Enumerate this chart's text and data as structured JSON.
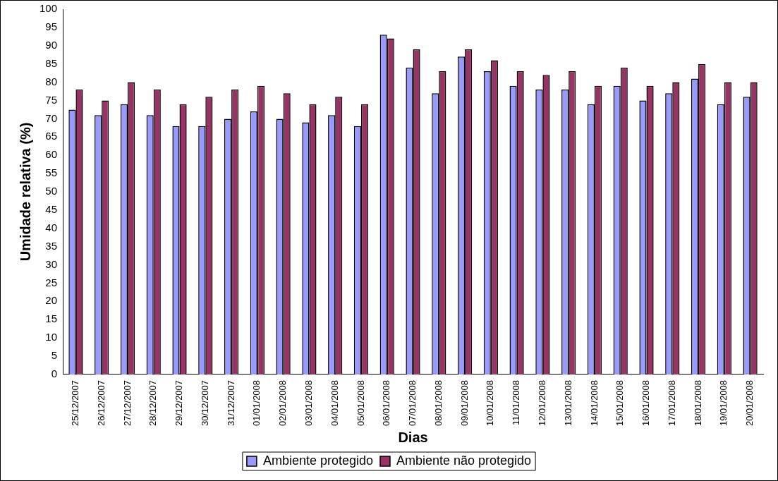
{
  "chart_data": {
    "type": "bar",
    "xlabel": "Dias",
    "ylabel": "Umidade relativa (%)",
    "categories": [
      "25/12/2007",
      "26/12/2007",
      "27/12/2007",
      "28/12/2007",
      "29/12/2007",
      "30/12/2007",
      "31/12/2007",
      "01/01/2008",
      "02/01/2008",
      "03/01/2008",
      "04/01/2008",
      "05/01/2008",
      "06/01/2008",
      "07/01/2008",
      "08/01/2008",
      "09/01/2008",
      "10/01/2008",
      "11/01/2008",
      "12/01/2008",
      "13/01/2008",
      "14/01/2008",
      "15/01/2008",
      "16/01/2008",
      "17/01/2008",
      "18/01/2008",
      "19/01/2008",
      "20/01/2008"
    ],
    "series": [
      {
        "name": "Ambiente protegido",
        "color": "#9999ff",
        "values": [
          72.5,
          71,
          74,
          71,
          68,
          68,
          70,
          72,
          70,
          69,
          71,
          68,
          93,
          84,
          77,
          87,
          83,
          79,
          78,
          78,
          74,
          79,
          75,
          77,
          81,
          74,
          76
        ]
      },
      {
        "name": "Ambiente não protegido",
        "color": "#993366",
        "values": [
          78,
          75,
          80,
          78,
          74,
          76,
          78,
          79,
          77,
          74,
          76,
          74,
          92,
          89,
          83,
          89,
          86,
          83,
          82,
          83,
          79,
          84,
          79,
          80,
          85,
          80,
          80
        ]
      }
    ],
    "ylim": [
      0,
      100
    ],
    "yticks": [
      0,
      5,
      10,
      15,
      20,
      25,
      30,
      35,
      40,
      45,
      50,
      55,
      60,
      65,
      70,
      75,
      80,
      85,
      90,
      95,
      100
    ],
    "grid": false,
    "legend": "bottom"
  }
}
